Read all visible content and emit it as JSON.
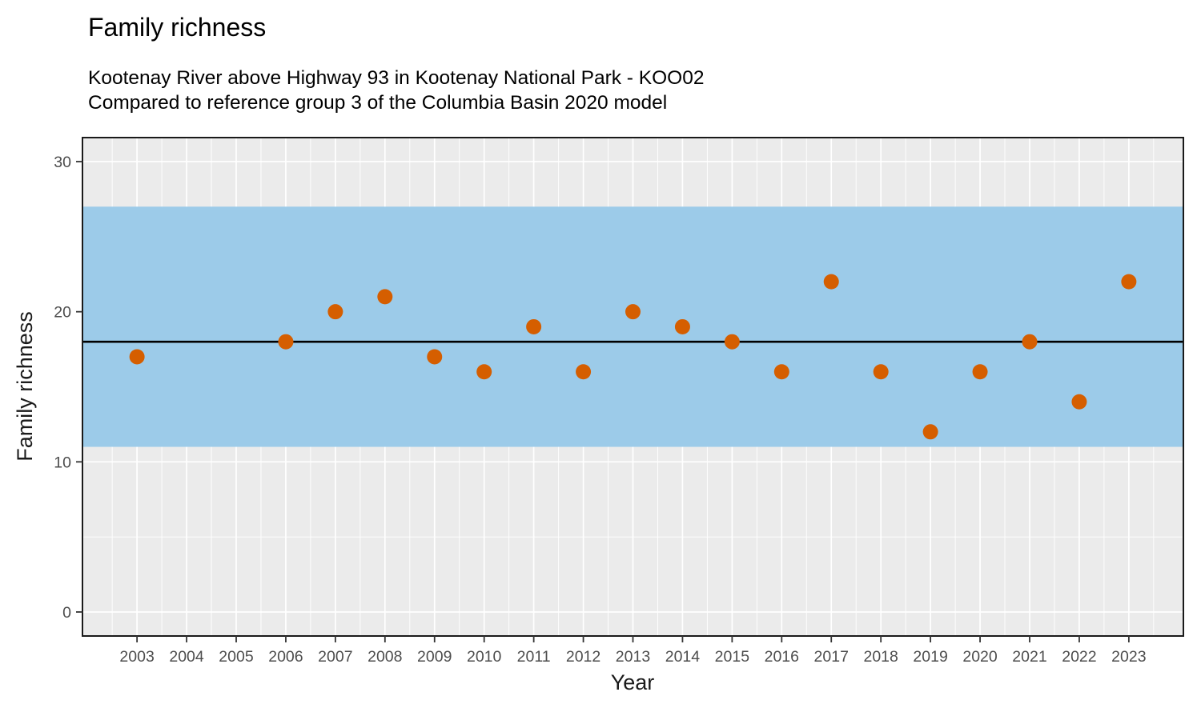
{
  "title": "Family richness",
  "subtitle": {
    "line1": "Kootenay River above Highway 93 in Kootenay National Park - KOO02",
    "line2": "Compared to reference group 3 of the Columbia Basin 2020 model"
  },
  "chart_data": {
    "type": "scatter",
    "title": "Family richness",
    "xlabel": "Year",
    "ylabel": "Family richness",
    "x_ticks": [
      2003,
      2004,
      2005,
      2006,
      2007,
      2008,
      2009,
      2010,
      2011,
      2012,
      2013,
      2014,
      2015,
      2016,
      2017,
      2018,
      2019,
      2020,
      2021,
      2022,
      2023
    ],
    "y_ticks": [
      0,
      10,
      20,
      30
    ],
    "xlim": [
      2001.9,
      2024.1
    ],
    "ylim": [
      -1.6,
      31.6
    ],
    "grid": true,
    "legend_position": "none",
    "reference_band": {
      "ymin": 11,
      "ymax": 27
    },
    "reference_line": {
      "y": 18
    },
    "points": [
      {
        "year": 2003,
        "value": 17
      },
      {
        "year": 2006,
        "value": 18
      },
      {
        "year": 2007,
        "value": 20
      },
      {
        "year": 2008,
        "value": 21
      },
      {
        "year": 2009,
        "value": 17
      },
      {
        "year": 2010,
        "value": 16
      },
      {
        "year": 2011,
        "value": 19
      },
      {
        "year": 2012,
        "value": 16
      },
      {
        "year": 2013,
        "value": 20
      },
      {
        "year": 2014,
        "value": 19
      },
      {
        "year": 2015,
        "value": 18
      },
      {
        "year": 2016,
        "value": 16
      },
      {
        "year": 2017,
        "value": 22
      },
      {
        "year": 2018,
        "value": 16
      },
      {
        "year": 2019,
        "value": 12
      },
      {
        "year": 2020,
        "value": 16
      },
      {
        "year": 2021,
        "value": 18
      },
      {
        "year": 2022,
        "value": 14
      },
      {
        "year": 2023,
        "value": 22
      }
    ],
    "colors": {
      "point": "#D55E00",
      "band": "#9CCBE9",
      "reference_line": "#000000",
      "panel_bg": "#EBEBEB",
      "grid": "#FFFFFF",
      "tick_label": "#4D4D4D",
      "panel_border": "#1A1A1A"
    }
  }
}
